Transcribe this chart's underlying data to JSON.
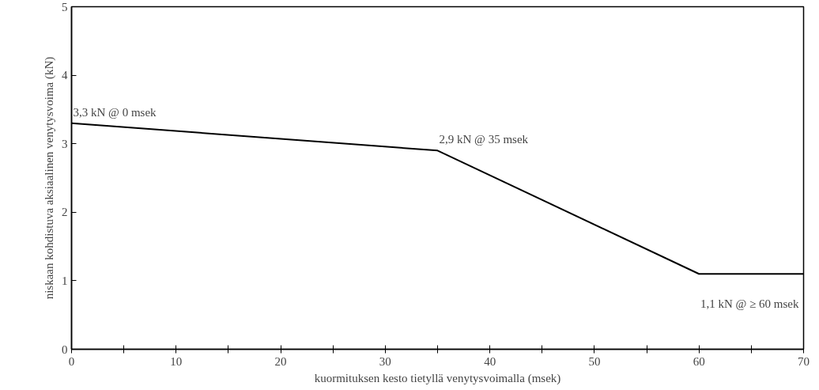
{
  "chart_data": {
    "type": "line",
    "xlabel": "kuormituksen kesto tietyllä venytysvoimalla (msek)",
    "ylabel": "niskaan kohdistuva aksiaalinen venytysvoima (kN)",
    "x": [
      0,
      35,
      60,
      70
    ],
    "series": [
      {
        "color": "#000000",
        "values": [
          3.3,
          2.9,
          1.1,
          1.1
        ]
      }
    ],
    "xlim": [
      0,
      70
    ],
    "ylim": [
      0,
      5
    ],
    "xticks": [
      0,
      {
        "value": 5,
        "label": null
      },
      10,
      {
        "value": 15,
        "label": null
      },
      20,
      {
        "value": 25,
        "label": null
      },
      30,
      {
        "value": 35,
        "label": null
      },
      40,
      {
        "value": 45,
        "label": null
      },
      50,
      {
        "value": 55,
        "label": null
      },
      60,
      {
        "value": 65,
        "label": null
      },
      70
    ],
    "yticks": [
      0,
      1,
      2,
      3,
      4,
      5
    ],
    "annotations": [
      {
        "text": "3,3 kN @ 0 msek",
        "x": 0,
        "y": 3.3
      },
      {
        "text": "2,9 kN @ 35 msek",
        "x": 35,
        "y": 2.9
      },
      {
        "text": "1,1 kN @ ≥ 60 msek",
        "x": 60,
        "y": 1.1
      }
    ],
    "grid": false,
    "marker": "none",
    "line_style": "solid"
  }
}
